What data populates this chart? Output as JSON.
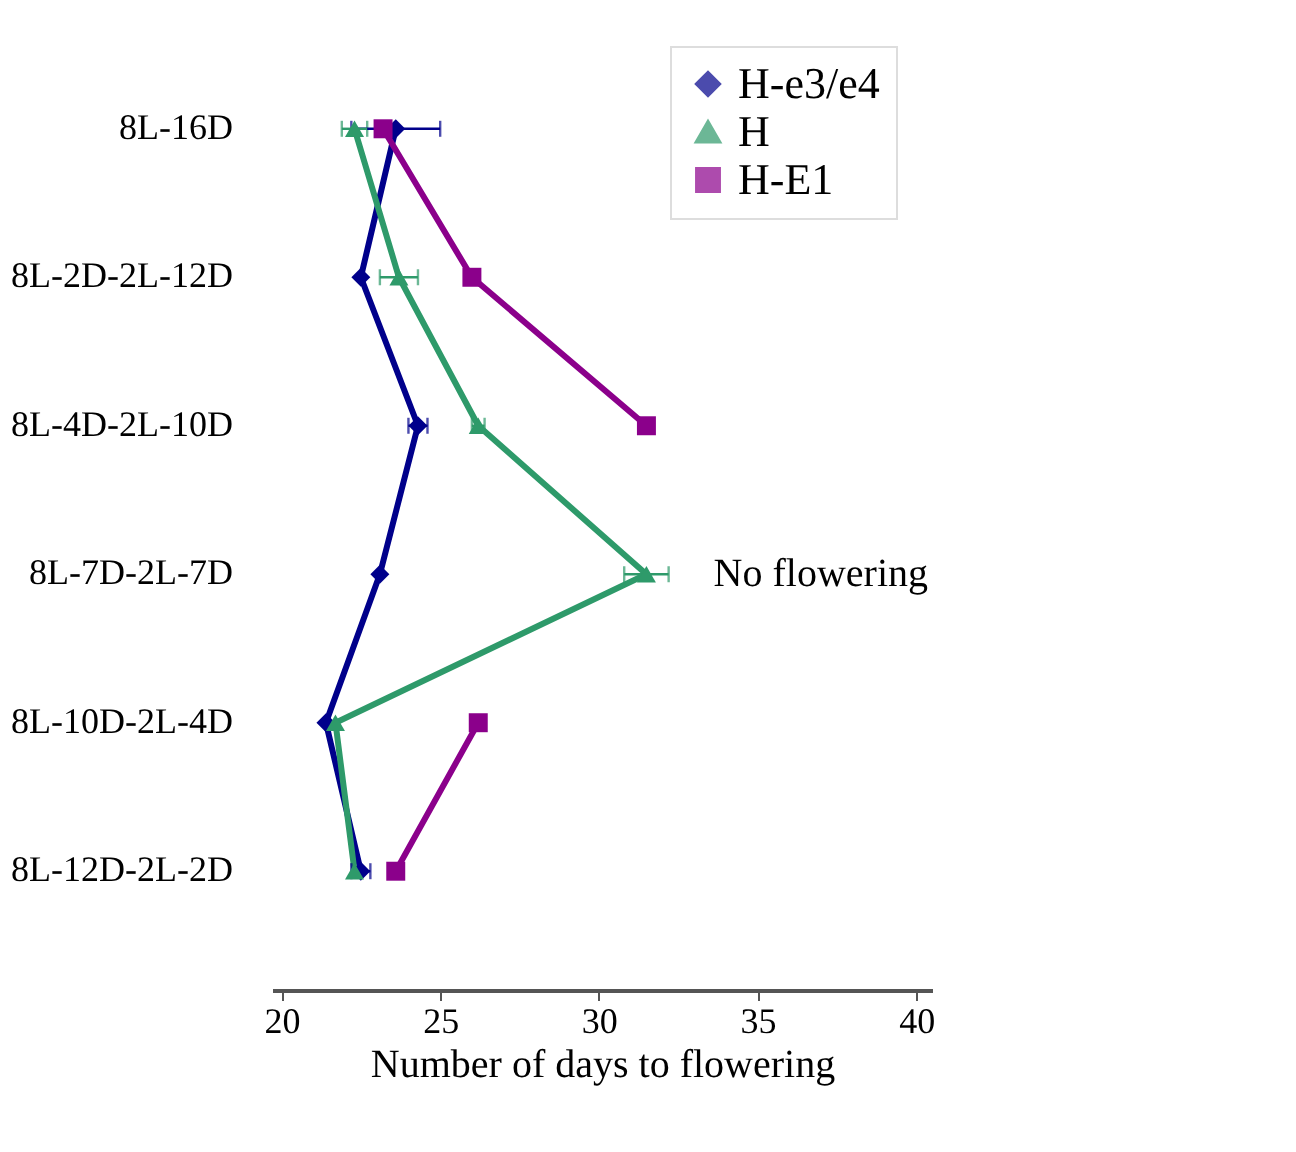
{
  "chart_data": {
    "type": "line",
    "orientation": "horizontal",
    "xlabel": "Number of days to flowering",
    "categories": [
      "8L-16D",
      "8L-2D-2L-12D",
      "8L-4D-2L-10D",
      "8L-7D-2L-7D",
      "8L-10D-2L-4D",
      "8L-12D-2L-2D"
    ],
    "xlim": [
      19.7,
      40.5
    ],
    "xticks": [
      20,
      25,
      30,
      35,
      40
    ],
    "grid": false,
    "legend": "top right",
    "series": [
      {
        "name": "H-e3/e4",
        "color": "#00008b",
        "marker": "diamond",
        "values": [
          23.6,
          22.5,
          24.3,
          23.1,
          21.4,
          22.5
        ],
        "errors": [
          1.4,
          null,
          0.3,
          null,
          null,
          0.3
        ]
      },
      {
        "name": "H",
        "color": "#2e9a6a",
        "marker": "triangle",
        "values": [
          22.3,
          23.7,
          26.2,
          31.5,
          21.7,
          22.3
        ],
        "errors": [
          0.4,
          0.6,
          0.2,
          0.7,
          null,
          null
        ]
      },
      {
        "name": "H-E1",
        "color": "#8b008b",
        "marker": "square",
        "values": [
          23.2,
          26.0,
          31.5,
          null,
          26.2,
          23.6
        ]
      }
    ],
    "annotations": [
      "No flowering"
    ]
  }
}
